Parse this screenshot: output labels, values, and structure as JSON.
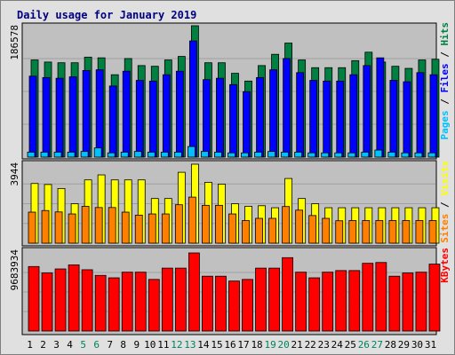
{
  "chart_data": {
    "type": "bar",
    "title": "Daily usage for January 2019",
    "x_tick_labels": [
      "1",
      "2",
      "3",
      "4",
      "5",
      "6",
      "7",
      "8",
      "9",
      "10",
      "11",
      "12",
      "13",
      "14",
      "15",
      "16",
      "17",
      "18",
      "19",
      "20",
      "21",
      "22",
      "23",
      "24",
      "25",
      "26",
      "27",
      "28",
      "29",
      "30",
      "31"
    ],
    "weekend_days": [
      5,
      6,
      12,
      13,
      19,
      20,
      26,
      27
    ],
    "colors": {
      "hits": "#008040",
      "files": "#0000ff",
      "pages": "#00c0ff",
      "visits": "#ffff00",
      "sites": "#ff8000",
      "kbytes": "#ff0000",
      "weekday_label": "#000000",
      "weekend_label": "#00805c",
      "panel": "#c0c0c0",
      "background": "#e0e0e0",
      "title": "#000080"
    },
    "panels": [
      {
        "ymax_label": "186578",
        "ylim": [
          0,
          186578
        ],
        "series": [
          {
            "name": "Hits",
            "values": [
              138000,
              135000,
              134000,
              134000,
              142000,
              141000,
              117000,
              140000,
              130000,
              129000,
              138000,
              143000,
              186578,
              134000,
              134000,
              119000,
              108000,
              130000,
              146000,
              162000,
              138000,
              127000,
              127000,
              127000,
              137000,
              149000,
              135000,
              129000,
              126000,
              138000,
              139000
            ]
          },
          {
            "name": "Files",
            "values": [
              115000,
              113000,
              112000,
              114000,
              123000,
              124000,
              101000,
              122000,
              109000,
              108000,
              117000,
              122000,
              165000,
              110000,
              112000,
              103000,
              93000,
              113000,
              124000,
              140000,
              120000,
              109000,
              108000,
              108000,
              117000,
              130000,
              141000,
              109000,
              107000,
              120000,
              117000
            ]
          },
          {
            "name": "Pages",
            "values": [
              7000,
              7000,
              7000,
              7000,
              8000,
              13000,
              6000,
              7000,
              8000,
              7000,
              7000,
              7000,
              15000,
              8000,
              7000,
              6000,
              6000,
              7000,
              8000,
              7000,
              7000,
              6000,
              6000,
              6000,
              6000,
              7000,
              10000,
              7000,
              6000,
              6000,
              6000
            ]
          }
        ]
      },
      {
        "ymax_label": "3944",
        "ylim": [
          0,
          3944
        ],
        "series": [
          {
            "name": "Visits",
            "values": [
              2980,
              2930,
              2730,
              1970,
              3160,
              3410,
              3160,
              3160,
              3160,
              2230,
              2230,
              3540,
              3944,
              3040,
              2950,
              1970,
              1840,
              1870,
              1770,
              3230,
              2230,
              1970,
              1770,
              1770,
              1770,
              1770,
              1770,
              1770,
              1770,
              1770,
              1770
            ]
          },
          {
            "name": "Sites",
            "values": [
              1550,
              1630,
              1560,
              1460,
              1840,
              1780,
              1780,
              1550,
              1400,
              1460,
              1460,
              1920,
              2300,
              1890,
              1890,
              1460,
              1130,
              1240,
              1240,
              1830,
              1650,
              1380,
              1240,
              1120,
              1130,
              1130,
              1130,
              1130,
              1130,
              1130,
              1130
            ]
          }
        ]
      },
      {
        "ymax_label": "9683934",
        "ylim": [
          0,
          9683934
        ],
        "series": [
          {
            "name": "KBytes",
            "values": [
              8000000,
              7200000,
              7700000,
              8200000,
              7600000,
              6900000,
              6600000,
              7300000,
              7300000,
              6400000,
              7800000,
              7800000,
              9683934,
              6800000,
              6800000,
              6200000,
              6400000,
              7800000,
              7800000,
              9100000,
              7300000,
              6600000,
              7300000,
              7500000,
              7500000,
              8400000,
              8500000,
              6800000,
              7200000,
              7300000,
              8300000
            ]
          }
        ]
      }
    ],
    "right_labels": [
      {
        "texts": [
          "Pages",
          "Files",
          "Hits"
        ],
        "colors": [
          "#00c0ff",
          "#0000ff",
          "#008040"
        ]
      },
      {
        "texts": [
          "Sites",
          "Visits"
        ],
        "colors": [
          "#ff8000",
          "#ffff00"
        ]
      },
      {
        "texts": [
          "KBytes"
        ],
        "colors": [
          "#ff0000"
        ]
      }
    ],
    "separator": "/",
    "grid": true,
    "legend_position": "right-vertical"
  }
}
